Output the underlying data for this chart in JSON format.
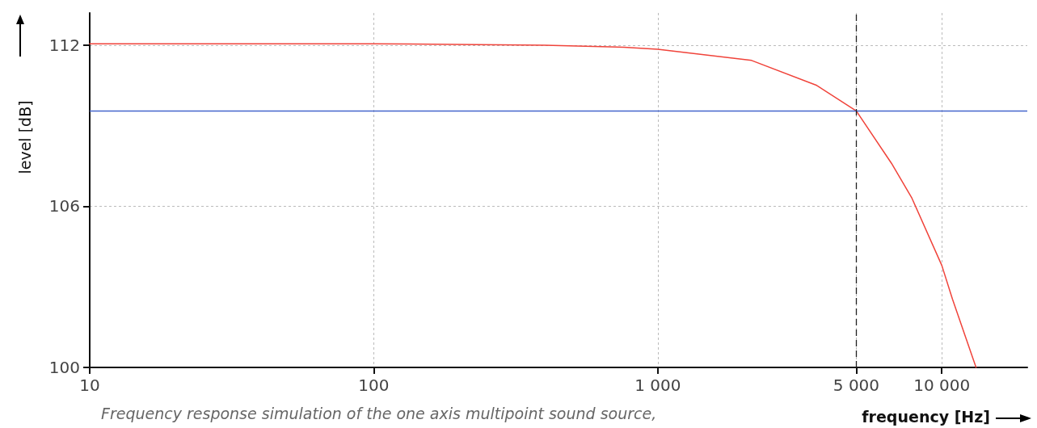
{
  "chart_data": {
    "type": "line",
    "xlabel": "frequency [Hz]",
    "ylabel": "level [dB]",
    "annotations": [
      "Frequency response simulation of the one axis multipoint sound source,"
    ],
    "log": "x",
    "xlim": [
      10,
      20000
    ],
    "xticks": [
      10,
      100,
      {
        "value": 1000,
        "label": "1 000"
      },
      {
        "value": 5000,
        "label": "5 000"
      },
      {
        "value": 10000,
        "label": "10 000"
      }
    ],
    "ylim": [
      100,
      113.2
    ],
    "yticks": [
      100,
      106,
      112
    ],
    "grid": true,
    "marker": "none",
    "line_style": "solid",
    "series": [
      {
        "color": "#f0433a",
        "x": [
          10,
          100,
          400,
          760,
          1000,
          2140,
          3630,
          5000,
          6650,
          7850,
          10000,
          10900,
          13200
        ],
        "values": [
          112.05,
          112.05,
          112.0,
          111.92,
          111.85,
          111.43,
          110.5,
          109.55,
          107.6,
          106.3,
          103.8,
          102.55,
          100
        ]
      }
    ],
    "ref_lines": [
      {
        "axis": "y",
        "value": 109.55,
        "color": "#4466cc",
        "line_style": "solid"
      },
      {
        "axis": "x",
        "value": 5000,
        "color": "#222222",
        "line_style": "dashed"
      }
    ]
  }
}
